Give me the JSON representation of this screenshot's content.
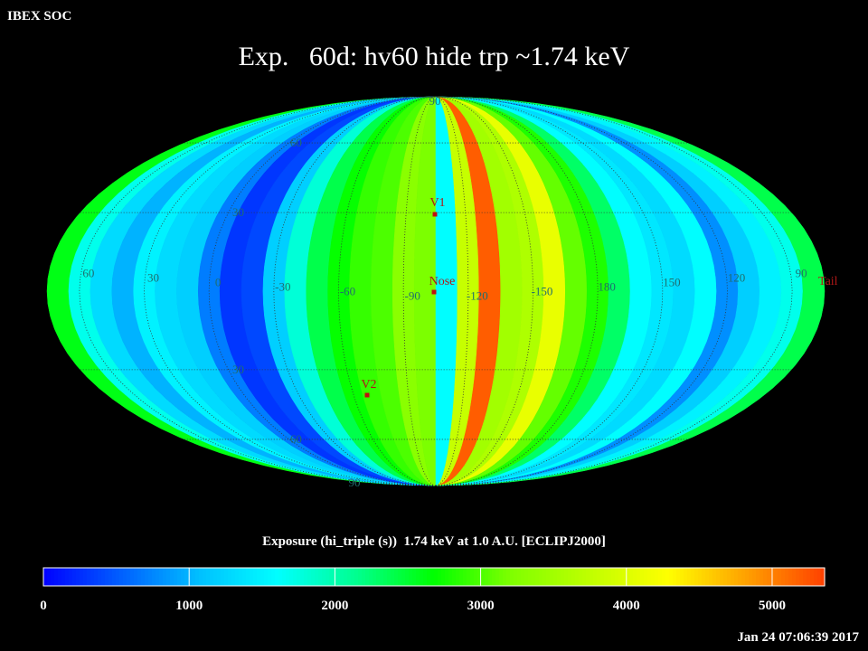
{
  "header": {
    "org": "IBEX SOC",
    "title": "Exp.   60d: hv60 hide trp ~1.74 keV",
    "timestamp": "Jan 24 07:06:39 2017"
  },
  "map": {
    "strips": [
      2600,
      1700,
      1300,
      1000,
      1500,
      1300,
      1200,
      700,
      300,
      400,
      1200,
      1800,
      2400,
      2700,
      2900,
      3000,
      3300,
      3200,
      1600,
      3800,
      5200,
      3500,
      3600,
      4100,
      3100,
      2800,
      2300,
      1600,
      1400,
      1300,
      1600,
      800,
      1200,
      1500,
      1700,
      2400
    ],
    "lon_labels": [
      60,
      30,
      0,
      -30,
      -60,
      -90,
      -120,
      -150,
      180,
      150,
      120,
      90
    ],
    "lat_labels": [
      90,
      60,
      30,
      {
        "value": -30,
        "label": "30"
      },
      {
        "value": -60,
        "label": "60"
      },
      {
        "value": -90,
        "label": "90"
      }
    ],
    "markers": [
      {
        "label": "V1"
      },
      {
        "label": "Nose"
      },
      {
        "label": "V2"
      },
      {
        "label": "Tail"
      }
    ]
  },
  "colorbar": {
    "title": "Exposure (hi_triple (s))  1.74 keV at 1.0 A.U. [ECLIPJ2000]",
    "min": 0,
    "max": 5360,
    "ticks": [
      0,
      1000,
      2000,
      3000,
      4000,
      5000
    ],
    "colors": [
      "#0000ff",
      "#0060ff",
      "#00c0ff",
      "#00ffff",
      "#00ff90",
      "#00ff00",
      "#80ff00",
      "#c0ff00",
      "#ffff00",
      "#ffa000",
      "#ff4000"
    ]
  }
}
